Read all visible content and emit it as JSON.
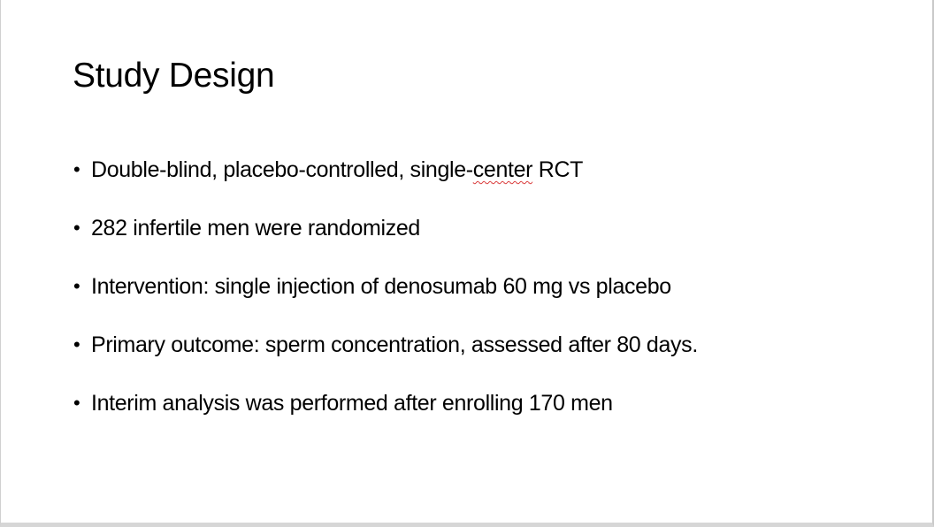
{
  "slide": {
    "title": "Study Design",
    "bullet_symbol": "•",
    "bullets": [
      {
        "text": "Double-blind, placebo-controlled, single-center RCT",
        "text_before": "Double-blind, placebo-controlled, single-",
        "text_flagged": "center",
        "text_after": " RCT",
        "spellcheck_underline_color": "#d93a3a"
      },
      {
        "text": "282 infertile men were randomized"
      },
      {
        "text": "Intervention: single injection of denosumab 60 mg vs placebo"
      },
      {
        "text": "Primary outcome: sperm concentration, assessed after 80 days."
      },
      {
        "text": "Interim analysis was performed after enrolling 170 men"
      }
    ]
  }
}
